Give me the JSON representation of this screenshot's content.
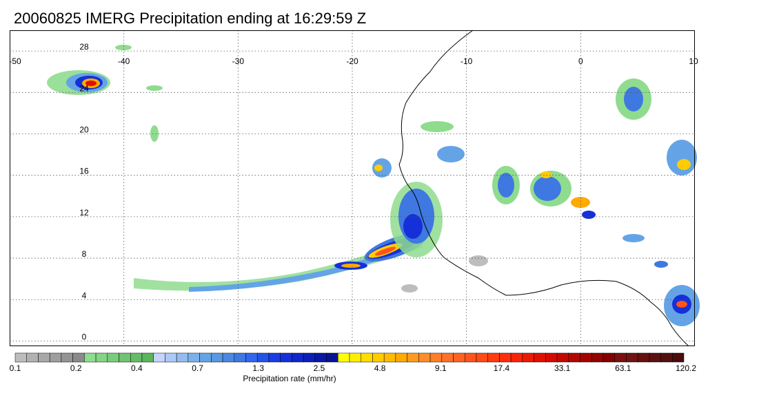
{
  "title": "20060825 IMERG Precipitation ending at 16:29:59 Z",
  "map": {
    "lon_range": [
      -50,
      10
    ],
    "lat_range": [
      -0.5,
      30
    ],
    "lon_ticks": [
      "-50",
      "-40",
      "-30",
      "-20",
      "-10",
      "0",
      "10"
    ],
    "lat_ticks": [
      "0",
      "4",
      "8",
      "12",
      "16",
      "20",
      "24",
      "28"
    ],
    "grid": "dotted",
    "coastline_color": "#000000"
  },
  "colorbar": {
    "label": "Precipitation rate (mm/hr)",
    "tick_labels": [
      "0.1",
      "0.2",
      "0.4",
      "0.7",
      "1.3",
      "2.5",
      "4.8",
      "9.1",
      "17.4",
      "33.1",
      "63.1",
      "120.2"
    ],
    "colors": [
      "#bdbdbd",
      "#b2b2b2",
      "#a8a8a8",
      "#9e9e9e",
      "#949494",
      "#8a8a8a",
      "#8fdc8f",
      "#84d484",
      "#7acc7a",
      "#70c470",
      "#66bc66",
      "#5cb45c",
      "#c4d4ff",
      "#acc8f8",
      "#94bcf0",
      "#7cb0ea",
      "#64a4e6",
      "#5898e4",
      "#4c88e2",
      "#3f78e0",
      "#3366ee",
      "#2254ea",
      "#1a3ce6",
      "#1530d8",
      "#1026cc",
      "#0c1eb8",
      "#0a18a8",
      "#081496",
      "#ffff00",
      "#ffee00",
      "#ffdd00",
      "#ffcc00",
      "#ffbb00",
      "#ffaa00",
      "#ff9a20",
      "#ff8c28",
      "#ff7e28",
      "#ff7028",
      "#ff6222",
      "#ff541c",
      "#ff4a14",
      "#ff3c10",
      "#ff2e0c",
      "#f82408",
      "#ec1a04",
      "#e01000",
      "#d40c00",
      "#c40800",
      "#b40600",
      "#a40400",
      "#940400",
      "#840000",
      "#7a1010",
      "#701414",
      "#661010",
      "#5c1010",
      "#541010",
      "#4a0c0c"
    ]
  }
}
